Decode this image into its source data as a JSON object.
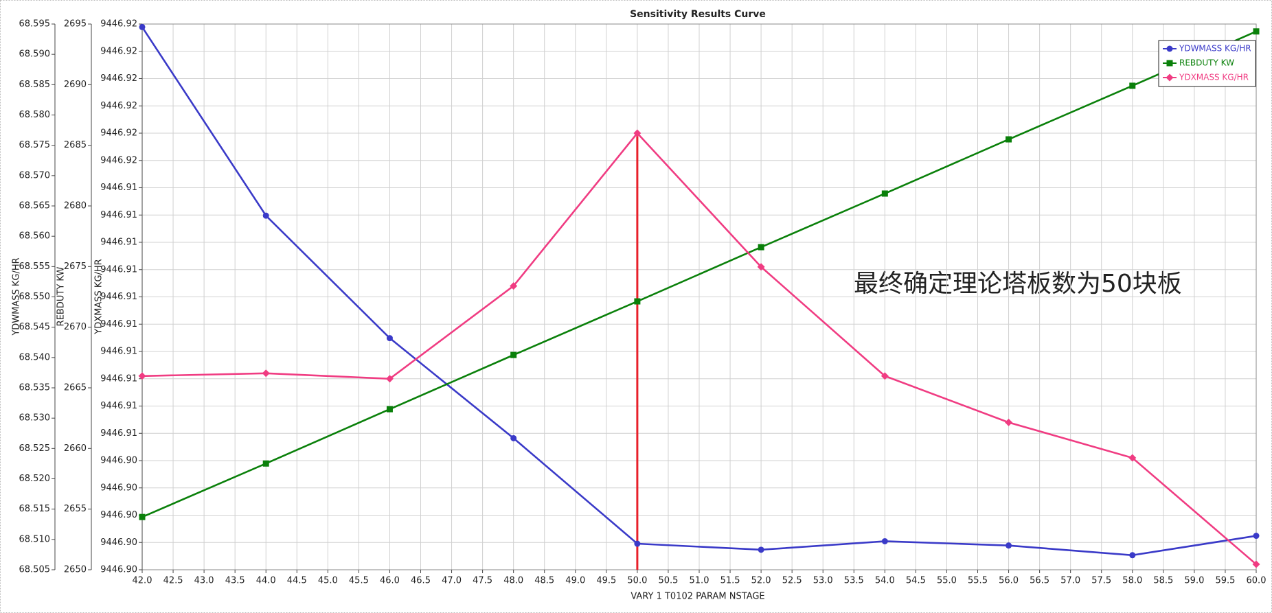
{
  "chart_data": {
    "type": "line",
    "title": "Sensitivity Results Curve",
    "x_label": "VARY   1 T0102 PARAM NSTAGE",
    "y_label": "YDWMASS KG/HR",
    "y2_label": "REBDUTY KW",
    "y3_label": "YDXMASS KG/HR",
    "annotation": "最终确定理论塔板数为50块板",
    "x": [
      42,
      44,
      46,
      48,
      50,
      52,
      54,
      56,
      58,
      60
    ],
    "xlim": [
      42,
      60
    ],
    "xticks": [
      {
        "value": 42,
        "label": "42.0"
      },
      42.5,
      {
        "value": 43,
        "label": "43.0"
      },
      43.5,
      {
        "value": 44,
        "label": "44.0"
      },
      44.5,
      {
        "value": 45,
        "label": "45.0"
      },
      45.5,
      {
        "value": 46,
        "label": "46.0"
      },
      46.5,
      {
        "value": 47,
        "label": "47.0"
      },
      47.5,
      {
        "value": 48,
        "label": "48.0"
      },
      48.5,
      {
        "value": 49,
        "label": "49.0"
      },
      49.5,
      {
        "value": 50,
        "label": "50.0"
      },
      50.5,
      {
        "value": 51,
        "label": "51.0"
      },
      51.5,
      {
        "value": 52,
        "label": "52.0"
      },
      52.5,
      {
        "value": 53,
        "label": "53.0"
      },
      53.5,
      {
        "value": 54,
        "label": "54.0"
      },
      54.5,
      {
        "value": 55,
        "label": "55.0"
      },
      55.5,
      {
        "value": 56,
        "label": "56.0"
      },
      56.5,
      {
        "value": 57,
        "label": "57.0"
      },
      57.5,
      {
        "value": 58,
        "label": "58.0"
      },
      58.5,
      {
        "value": 59,
        "label": "59.0"
      },
      59.5,
      {
        "value": 60,
        "label": "60.0"
      }
    ],
    "ylim": [
      68.505,
      68.595
    ],
    "yticks": [
      68.505,
      {
        "value": 68.51,
        "label": "68.510"
      },
      68.515,
      {
        "value": 68.52,
        "label": "68.520"
      },
      68.525,
      {
        "value": 68.53,
        "label": "68.530"
      },
      68.535,
      {
        "value": 68.54,
        "label": "68.540"
      },
      68.545,
      {
        "value": 68.55,
        "label": "68.550"
      },
      68.555,
      {
        "value": 68.56,
        "label": "68.560"
      },
      68.565,
      {
        "value": 68.57,
        "label": "68.570"
      },
      68.575,
      {
        "value": 68.58,
        "label": "68.580"
      },
      68.585,
      {
        "value": 68.59,
        "label": "68.590"
      },
      68.595
    ],
    "y2lim": [
      2650,
      2695
    ],
    "y2ticks": [
      2650,
      2655,
      2660,
      2665,
      2670,
      2675,
      2680,
      2685,
      2690,
      2695
    ],
    "y3lim": [
      9446.9,
      9446.92
    ],
    "y3ticks": [
      {
        "value": 9446.9,
        "label": "9446.90"
      },
      {
        "value": 9446.901,
        "label": "9446.90"
      },
      {
        "value": 9446.902,
        "label": "9446.90"
      },
      {
        "value": 9446.903,
        "label": "9446.90"
      },
      {
        "value": 9446.904,
        "label": "9446.90"
      },
      {
        "value": 9446.905,
        "label": "9446.91"
      },
      {
        "value": 9446.906,
        "label": "9446.91"
      },
      {
        "value": 9446.907,
        "label": "9446.91"
      },
      {
        "value": 9446.908,
        "label": "9446.91"
      },
      {
        "value": 9446.909,
        "label": "9446.91"
      },
      {
        "value": 9446.91,
        "label": "9446.91"
      },
      {
        "value": 9446.911,
        "label": "9446.91"
      },
      {
        "value": 9446.912,
        "label": "9446.91"
      },
      {
        "value": 9446.913,
        "label": "9446.91"
      },
      {
        "value": 9446.914,
        "label": "9446.91"
      },
      {
        "value": 9446.915,
        "label": "9446.92"
      },
      {
        "value": 9446.916,
        "label": "9446.92"
      },
      {
        "value": 9446.917,
        "label": "9446.92"
      },
      {
        "value": 9446.918,
        "label": "9446.92"
      },
      {
        "value": 9446.919,
        "label": "9446.92"
      },
      {
        "value": 9446.92,
        "label": "9446.92"
      }
    ],
    "grid": true,
    "legend": "upper right",
    "vline": {
      "x": 50,
      "color": "#e8202a"
    },
    "series": [
      {
        "name": "YDWMASS KG/HR",
        "color": "#3a3ac8",
        "marker": "circle",
        "axis": "y",
        "values": [
          68.5945,
          68.5634,
          68.5432,
          68.5267,
          68.5093,
          68.5083,
          68.5097,
          68.509,
          68.5074,
          68.5106
        ]
      },
      {
        "name": "REBDUTY KW",
        "color": "#0a800a",
        "marker": "square",
        "axis": "y2",
        "values": [
          2654.35,
          2658.76,
          2663.24,
          2667.71,
          2672.13,
          2676.6,
          2681.02,
          2685.49,
          2689.91,
          2694.39
        ]
      },
      {
        "name": "YDXMASS KG/HR",
        "color": "#f03c82",
        "marker": "diamond",
        "axis": "y3",
        "values": [
          9446.9071,
          9446.9072,
          9446.907,
          9446.9104,
          9446.916,
          9446.9111,
          9446.9071,
          9446.9054,
          9446.9041,
          9446.9002
        ]
      }
    ]
  }
}
